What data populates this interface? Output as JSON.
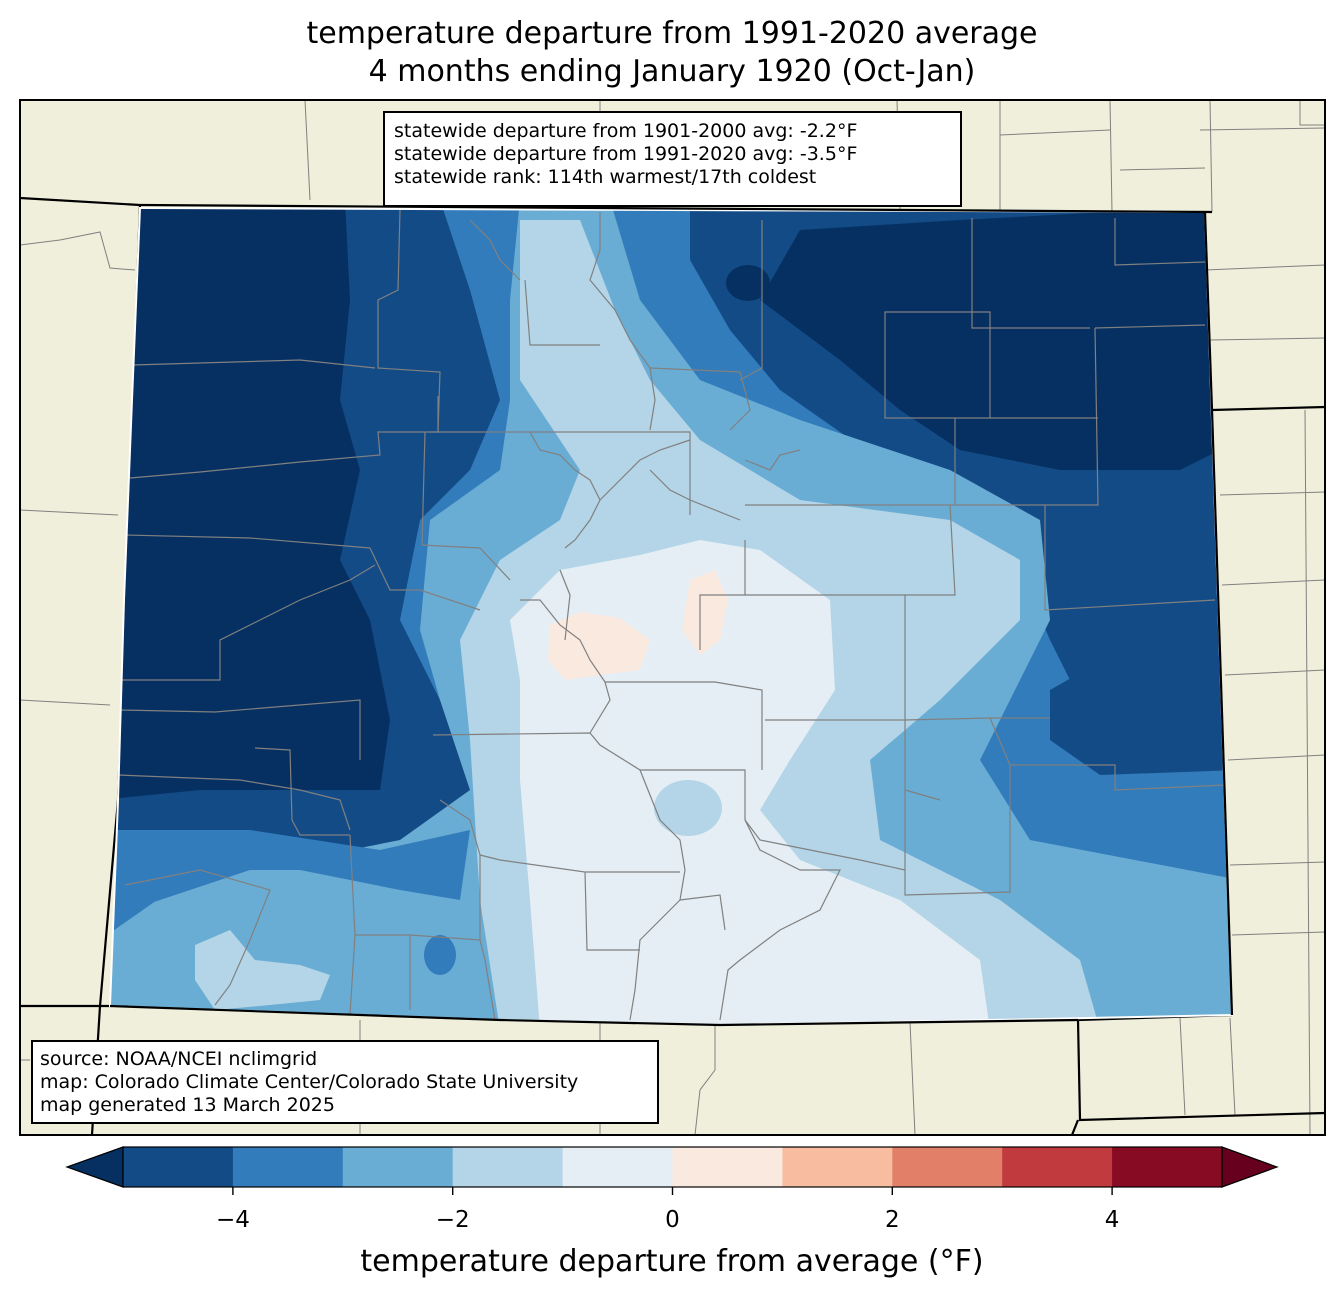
{
  "title": {
    "line1": "temperature departure from 1991-2020 average",
    "line2": "4 months ending January 1920 (Oct-Jan)"
  },
  "stats": {
    "line1": "statewide departure from 1901-2000 avg: -2.2°F",
    "line2": "statewide departure from 1991-2020 avg: -3.5°F",
    "line3": "statewide rank: 114th warmest/17th coldest"
  },
  "source": {
    "line1": "source: NOAA/NCEI nclimgrid",
    "line2": "map: Colorado Climate Center/Colorado State University",
    "line3": "map generated 13 March 2025"
  },
  "colorbar": {
    "label": "temperature departure from average (°F)",
    "ticks": [
      "−4",
      "−2",
      "0",
      "2",
      "4"
    ],
    "tick_values": [
      -4,
      -2,
      0,
      2,
      4
    ],
    "range": [
      -5,
      5
    ],
    "bins": [
      {
        "from": -5,
        "to": -4,
        "color": "#134b87"
      },
      {
        "from": -4,
        "to": -3,
        "color": "#327cbb"
      },
      {
        "from": -3,
        "to": -2,
        "color": "#6aadd4"
      },
      {
        "from": -2,
        "to": -1,
        "color": "#b3d5e7"
      },
      {
        "from": -1,
        "to": 0,
        "color": "#e5eef4"
      },
      {
        "from": 0,
        "to": 1,
        "color": "#fae9df"
      },
      {
        "from": 1,
        "to": 2,
        "color": "#f8bda1"
      },
      {
        "from": 2,
        "to": 3,
        "color": "#e27f68"
      },
      {
        "from": 3,
        "to": 4,
        "color": "#c13a3e"
      },
      {
        "from": 4,
        "to": 5,
        "color": "#870b22"
      }
    ],
    "under_color": "#053061",
    "over_color": "#67001f"
  },
  "colors": {
    "land": "#efefdc",
    "county_lines": "#808080",
    "state_lines": "#000000"
  }
}
